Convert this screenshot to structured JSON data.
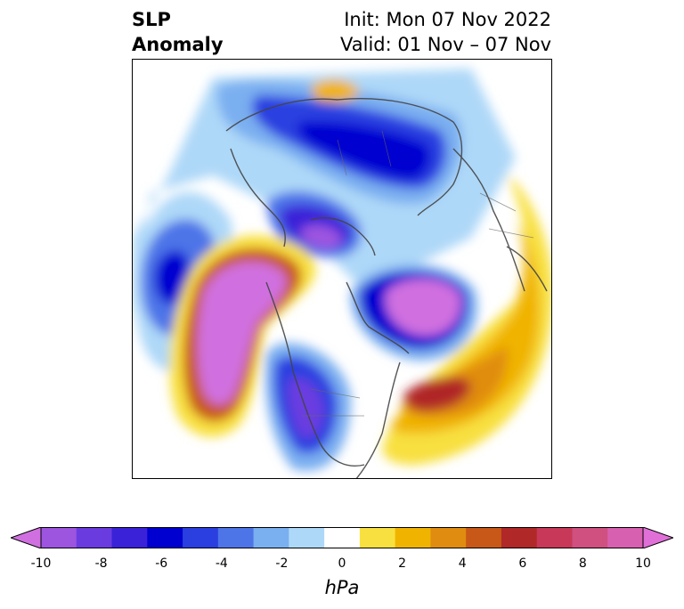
{
  "title": {
    "left_line1": "SLP",
    "left_line2": "Anomaly",
    "right_line1": "Init: Mon 07 Nov 2022",
    "right_line2": "Valid: 01 Nov – 07 Nov"
  },
  "colorbar": {
    "unit": "hPa",
    "ticks": [
      "-10",
      "-8",
      "-6",
      "-4",
      "-2",
      "0",
      "2",
      "4",
      "6",
      "8",
      "10"
    ],
    "colors": [
      "#d070e0",
      "#9d55e0",
      "#6a3ce0",
      "#3a22d8",
      "#0000d0",
      "#2b3fe0",
      "#4e75e8",
      "#7aaff0",
      "#aed8f8",
      "#ffffff",
      "#f8e040",
      "#f0b400",
      "#e08c10",
      "#c85818",
      "#b02828",
      "#c83858",
      "#d05080",
      "#d860b0",
      "#e070d8"
    ]
  }
}
